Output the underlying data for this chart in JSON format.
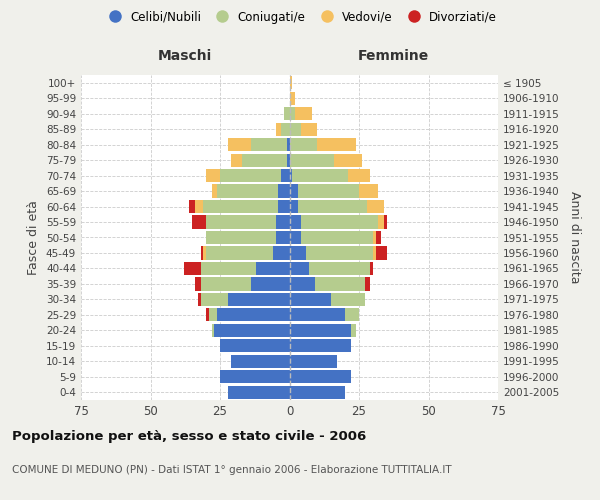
{
  "age_groups": [
    "0-4",
    "5-9",
    "10-14",
    "15-19",
    "20-24",
    "25-29",
    "30-34",
    "35-39",
    "40-44",
    "45-49",
    "50-54",
    "55-59",
    "60-64",
    "65-69",
    "70-74",
    "75-79",
    "80-84",
    "85-89",
    "90-94",
    "95-99",
    "100+"
  ],
  "birth_years": [
    "2001-2005",
    "1996-2000",
    "1991-1995",
    "1986-1990",
    "1981-1985",
    "1976-1980",
    "1971-1975",
    "1966-1970",
    "1961-1965",
    "1956-1960",
    "1951-1955",
    "1946-1950",
    "1941-1945",
    "1936-1940",
    "1931-1935",
    "1926-1930",
    "1921-1925",
    "1916-1920",
    "1911-1915",
    "1906-1910",
    "≤ 1905"
  ],
  "males": {
    "celibi": [
      22,
      25,
      21,
      25,
      27,
      26,
      22,
      14,
      12,
      6,
      5,
      5,
      4,
      4,
      3,
      1,
      1,
      0,
      0,
      0,
      0
    ],
    "coniugati": [
      0,
      0,
      0,
      0,
      1,
      3,
      10,
      18,
      20,
      24,
      25,
      25,
      27,
      22,
      22,
      16,
      13,
      3,
      2,
      0,
      0
    ],
    "vedovi": [
      0,
      0,
      0,
      0,
      0,
      0,
      0,
      0,
      0,
      1,
      0,
      0,
      3,
      2,
      5,
      4,
      8,
      2,
      0,
      0,
      0
    ],
    "divorziati": [
      0,
      0,
      0,
      0,
      0,
      1,
      1,
      2,
      6,
      1,
      0,
      5,
      2,
      0,
      0,
      0,
      0,
      0,
      0,
      0,
      0
    ]
  },
  "females": {
    "nubili": [
      20,
      22,
      17,
      22,
      22,
      20,
      15,
      9,
      7,
      6,
      4,
      4,
      3,
      3,
      1,
      0,
      0,
      0,
      0,
      0,
      0
    ],
    "coniugate": [
      0,
      0,
      0,
      0,
      2,
      5,
      12,
      18,
      22,
      24,
      26,
      28,
      25,
      22,
      20,
      16,
      10,
      4,
      2,
      0,
      0
    ],
    "vedove": [
      0,
      0,
      0,
      0,
      0,
      0,
      0,
      0,
      0,
      1,
      1,
      2,
      6,
      7,
      8,
      10,
      14,
      6,
      6,
      2,
      1
    ],
    "divorziate": [
      0,
      0,
      0,
      0,
      0,
      0,
      0,
      2,
      1,
      4,
      2,
      1,
      0,
      0,
      0,
      0,
      0,
      0,
      0,
      0,
      0
    ]
  },
  "colors": {
    "celibi": "#4472c4",
    "coniugati": "#b5cc8e",
    "vedovi": "#f5c060",
    "divorziati": "#cc2222"
  },
  "xlim": 75,
  "title": "Popolazione per età, sesso e stato civile - 2006",
  "subtitle": "COMUNE DI MEDUNO (PN) - Dati ISTAT 1° gennaio 2006 - Elaborazione TUTTITALIA.IT",
  "ylabel_left": "Fasce di età",
  "ylabel_right": "Anni di nascita",
  "xlabel_left": "Maschi",
  "xlabel_right": "Femmine",
  "bg_color": "#f0f0eb",
  "plot_bg_color": "#ffffff",
  "legend_labels": [
    "Celibi/Nubili",
    "Coniugati/e",
    "Vedovi/e",
    "Divorziati/e"
  ]
}
